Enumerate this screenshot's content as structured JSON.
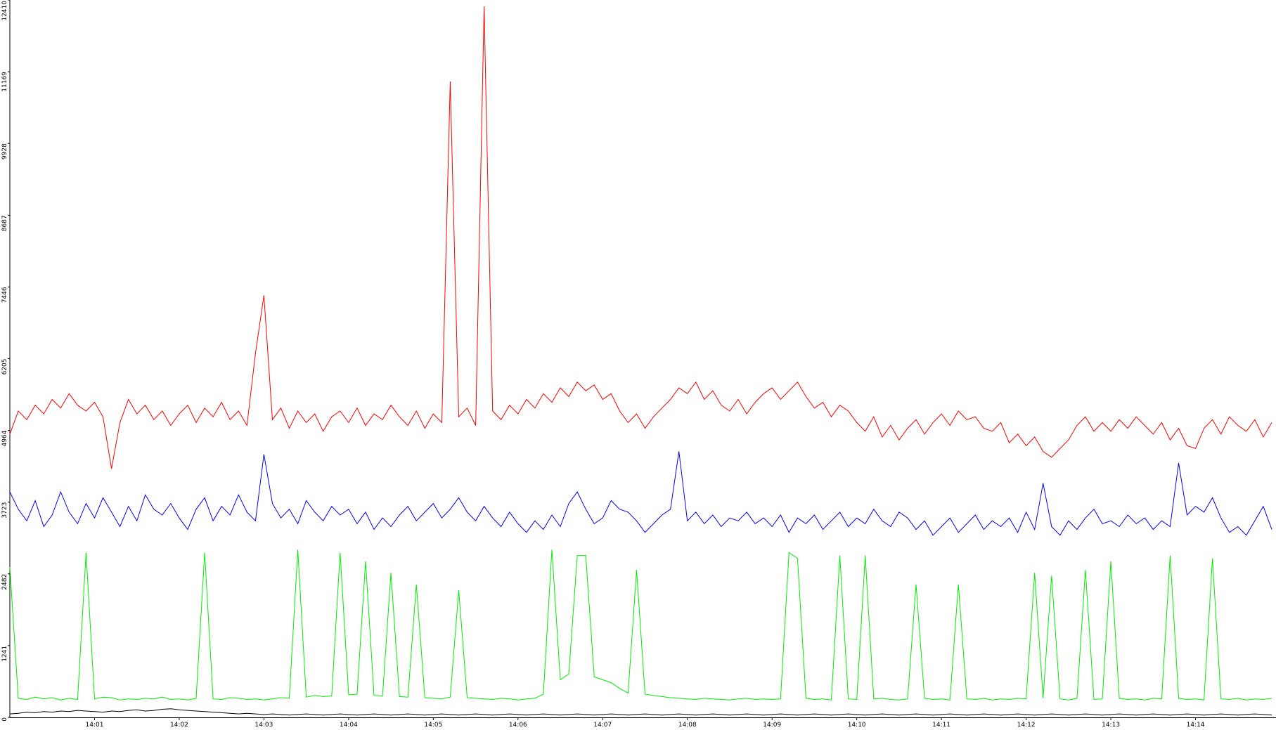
{
  "chart_data": {
    "type": "line",
    "xlim": [
      0,
      14.95
    ],
    "ylim": [
      0,
      12410
    ],
    "xticks": [
      {
        "value": 1,
        "label": "14:01"
      },
      {
        "value": 2,
        "label": "14:02"
      },
      {
        "value": 3,
        "label": "14:03"
      },
      {
        "value": 4,
        "label": "14:04"
      },
      {
        "value": 5,
        "label": "14:05"
      },
      {
        "value": 6,
        "label": "14:06"
      },
      {
        "value": 7,
        "label": "14:07"
      },
      {
        "value": 8,
        "label": "14:08"
      },
      {
        "value": 9,
        "label": "14:09"
      },
      {
        "value": 10,
        "label": "14:10"
      },
      {
        "value": 11,
        "label": "14:11"
      },
      {
        "value": 12,
        "label": "14:12"
      },
      {
        "value": 13,
        "label": "14:13"
      },
      {
        "value": 14,
        "label": "14:14"
      }
    ],
    "yticks": [
      0,
      1241,
      2482,
      3723,
      4964,
      6205,
      7446,
      8687,
      9928,
      11169,
      12410
    ],
    "x": [
      0,
      0.1,
      0.2,
      0.3,
      0.4,
      0.5,
      0.6,
      0.7,
      0.8,
      0.9,
      1,
      1.1,
      1.2,
      1.3,
      1.4,
      1.5,
      1.6,
      1.7,
      1.8,
      1.9,
      2,
      2.1,
      2.2,
      2.3,
      2.4,
      2.5,
      2.6,
      2.7,
      2.8,
      2.9,
      3,
      3.1,
      3.2,
      3.3,
      3.4,
      3.5,
      3.6,
      3.7,
      3.8,
      3.9,
      4,
      4.1,
      4.2,
      4.3,
      4.4,
      4.5,
      4.6,
      4.7,
      4.8,
      4.9,
      5,
      5.1,
      5.2,
      5.3,
      5.4,
      5.5,
      5.6,
      5.7,
      5.8,
      5.9,
      6,
      6.1,
      6.2,
      6.3,
      6.4,
      6.5,
      6.6,
      6.7,
      6.8,
      6.9,
      7,
      7.1,
      7.2,
      7.3,
      7.4,
      7.5,
      7.6,
      7.7,
      7.8,
      7.9,
      8,
      8.1,
      8.2,
      8.3,
      8.4,
      8.5,
      8.6,
      8.7,
      8.8,
      8.9,
      9,
      9.1,
      9.2,
      9.3,
      9.4,
      9.5,
      9.6,
      9.7,
      9.8,
      9.9,
      10,
      10.1,
      10.2,
      10.3,
      10.4,
      10.5,
      10.6,
      10.7,
      10.8,
      10.9,
      11,
      11.1,
      11.2,
      11.3,
      11.4,
      11.5,
      11.6,
      11.7,
      11.8,
      11.9,
      12,
      12.1,
      12.2,
      12.3,
      12.4,
      12.5,
      12.6,
      12.7,
      12.8,
      12.9,
      13,
      13.1,
      13.2,
      13.3,
      13.4,
      13.5,
      13.6,
      13.7,
      13.8,
      13.9,
      14,
      14.1,
      14.2,
      14.3,
      14.4,
      14.5,
      14.6,
      14.7,
      14.8,
      14.9
    ],
    "series": [
      {
        "color": "#ff0000",
        "values": [
          4900,
          5300,
          5150,
          5400,
          5250,
          5500,
          5350,
          5600,
          5400,
          5300,
          5450,
          5200,
          4300,
          5100,
          5500,
          5250,
          5400,
          5150,
          5300,
          5050,
          5250,
          5400,
          5100,
          5350,
          5200,
          5450,
          5150,
          5300,
          5050,
          6300,
          7300,
          5150,
          5350,
          5000,
          5300,
          5100,
          5250,
          4950,
          5200,
          5300,
          5100,
          5350,
          5050,
          5250,
          5150,
          5400,
          5200,
          5050,
          5300,
          5000,
          5250,
          5100,
          11000,
          5200,
          5350,
          5050,
          12300,
          5300,
          5150,
          5400,
          5250,
          5500,
          5350,
          5600,
          5450,
          5700,
          5550,
          5800,
          5650,
          5750,
          5500,
          5600,
          5300,
          5100,
          5250,
          5000,
          5200,
          5350,
          5500,
          5700,
          5600,
          5800,
          5500,
          5650,
          5400,
          5300,
          5500,
          5250,
          5450,
          5600,
          5700,
          5500,
          5650,
          5800,
          5550,
          5350,
          5450,
          5200,
          5400,
          5300,
          5100,
          4950,
          5200,
          4850,
          5050,
          4800,
          5000,
          5150,
          4900,
          5100,
          5250,
          5050,
          5300,
          5150,
          5200,
          5000,
          4950,
          5100,
          4750,
          4900,
          4700,
          4850,
          4600,
          4500,
          4650,
          4800,
          5050,
          5200,
          4950,
          5100,
          4950,
          5150,
          5000,
          5200,
          5050,
          4900,
          5100,
          4800,
          5000,
          4700,
          4650,
          5000,
          5150,
          4900,
          5200,
          5050,
          4950,
          5150,
          4850,
          5100
        ]
      },
      {
        "color": "#0000ff",
        "values": [
          3900,
          3600,
          3400,
          3750,
          3300,
          3500,
          3900,
          3550,
          3350,
          3700,
          3450,
          3800,
          3550,
          3300,
          3650,
          3400,
          3850,
          3600,
          3500,
          3700,
          3450,
          3250,
          3600,
          3800,
          3400,
          3650,
          3500,
          3850,
          3550,
          3400,
          4550,
          3700,
          3450,
          3600,
          3350,
          3750,
          3550,
          3400,
          3650,
          3500,
          3600,
          3350,
          3550,
          3250,
          3450,
          3300,
          3500,
          3650,
          3400,
          3550,
          3700,
          3450,
          3600,
          3800,
          3550,
          3400,
          3650,
          3450,
          3300,
          3550,
          3350,
          3200,
          3400,
          3250,
          3500,
          3300,
          3700,
          3900,
          3600,
          3350,
          3450,
          3750,
          3600,
          3550,
          3400,
          3200,
          3350,
          3500,
          3600,
          4600,
          3400,
          3550,
          3350,
          3500,
          3300,
          3450,
          3400,
          3550,
          3350,
          3450,
          3300,
          3500,
          3200,
          3450,
          3350,
          3500,
          3250,
          3400,
          3550,
          3300,
          3450,
          3350,
          3600,
          3400,
          3300,
          3550,
          3450,
          3250,
          3400,
          3150,
          3300,
          3450,
          3200,
          3350,
          3500,
          3250,
          3400,
          3300,
          3450,
          3200,
          3550,
          3250,
          4050,
          3300,
          3150,
          3400,
          3250,
          3450,
          3600,
          3350,
          3400,
          3300,
          3500,
          3350,
          3450,
          3250,
          3400,
          3300,
          4400,
          3500,
          3650,
          3550,
          3800,
          3450,
          3200,
          3300,
          3150,
          3400,
          3650,
          3250
        ]
      },
      {
        "color": "#00ee00",
        "values": [
          2600,
          330,
          310,
          350,
          320,
          340,
          300,
          330,
          310,
          2850,
          320,
          350,
          340,
          300,
          320,
          310,
          330,
          320,
          350,
          310,
          320,
          300,
          330,
          2850,
          320,
          310,
          340,
          330,
          310,
          320,
          300,
          320,
          340,
          330,
          2900,
          350,
          380,
          360,
          370,
          2850,
          390,
          400,
          2700,
          380,
          370,
          2500,
          360,
          350,
          2300,
          340,
          330,
          320,
          350,
          2200,
          340,
          330,
          320,
          310,
          330,
          320,
          300,
          320,
          330,
          400,
          2900,
          650,
          750,
          2800,
          2800,
          700,
          650,
          600,
          500,
          420,
          2550,
          400,
          380,
          360,
          340,
          330,
          320,
          310,
          330,
          320,
          310,
          300,
          320,
          330,
          310,
          320,
          310,
          320,
          2850,
          2750,
          330,
          310,
          320,
          300,
          2800,
          320,
          310,
          2800,
          320,
          330,
          310,
          300,
          320,
          2300,
          330,
          310,
          320,
          300,
          2300,
          320,
          310,
          330,
          300,
          320,
          310,
          330,
          320,
          2500,
          330,
          2450,
          320,
          300,
          330,
          2550,
          310,
          320,
          2700,
          330,
          310,
          320,
          300,
          330,
          320,
          2800,
          330,
          310,
          320,
          300,
          2750,
          320,
          310,
          330,
          300,
          320,
          310,
          330
        ]
      },
      {
        "color": "#000000",
        "values": [
          60,
          70,
          90,
          80,
          100,
          90,
          110,
          100,
          120,
          110,
          100,
          90,
          110,
          100,
          120,
          130,
          110,
          120,
          140,
          150,
          130,
          120,
          110,
          100,
          90,
          80,
          70,
          60,
          70,
          60,
          50,
          60,
          50,
          40,
          50,
          60,
          50,
          40,
          50,
          60,
          50,
          40,
          50,
          60,
          50,
          40,
          50,
          60,
          50,
          40,
          50,
          60,
          50,
          40,
          50,
          60,
          50,
          40,
          50,
          60,
          50,
          40,
          50,
          60,
          50,
          40,
          50,
          60,
          50,
          40,
          50,
          60,
          50,
          40,
          50,
          60,
          50,
          40,
          50,
          60,
          50,
          40,
          50,
          60,
          50,
          40,
          50,
          60,
          50,
          40,
          50,
          60,
          50,
          40,
          50,
          60,
          50,
          40,
          50,
          60,
          50,
          40,
          50,
          60,
          50,
          40,
          50,
          60,
          50,
          40,
          50,
          60,
          50,
          40,
          50,
          60,
          50,
          40,
          50,
          60,
          50,
          40,
          50,
          60,
          50,
          40,
          50,
          60,
          50,
          40,
          50,
          60,
          50,
          40,
          50,
          60,
          50,
          40,
          50,
          60,
          50,
          40,
          50,
          60,
          50,
          40,
          50,
          60,
          50,
          40
        ]
      }
    ]
  }
}
